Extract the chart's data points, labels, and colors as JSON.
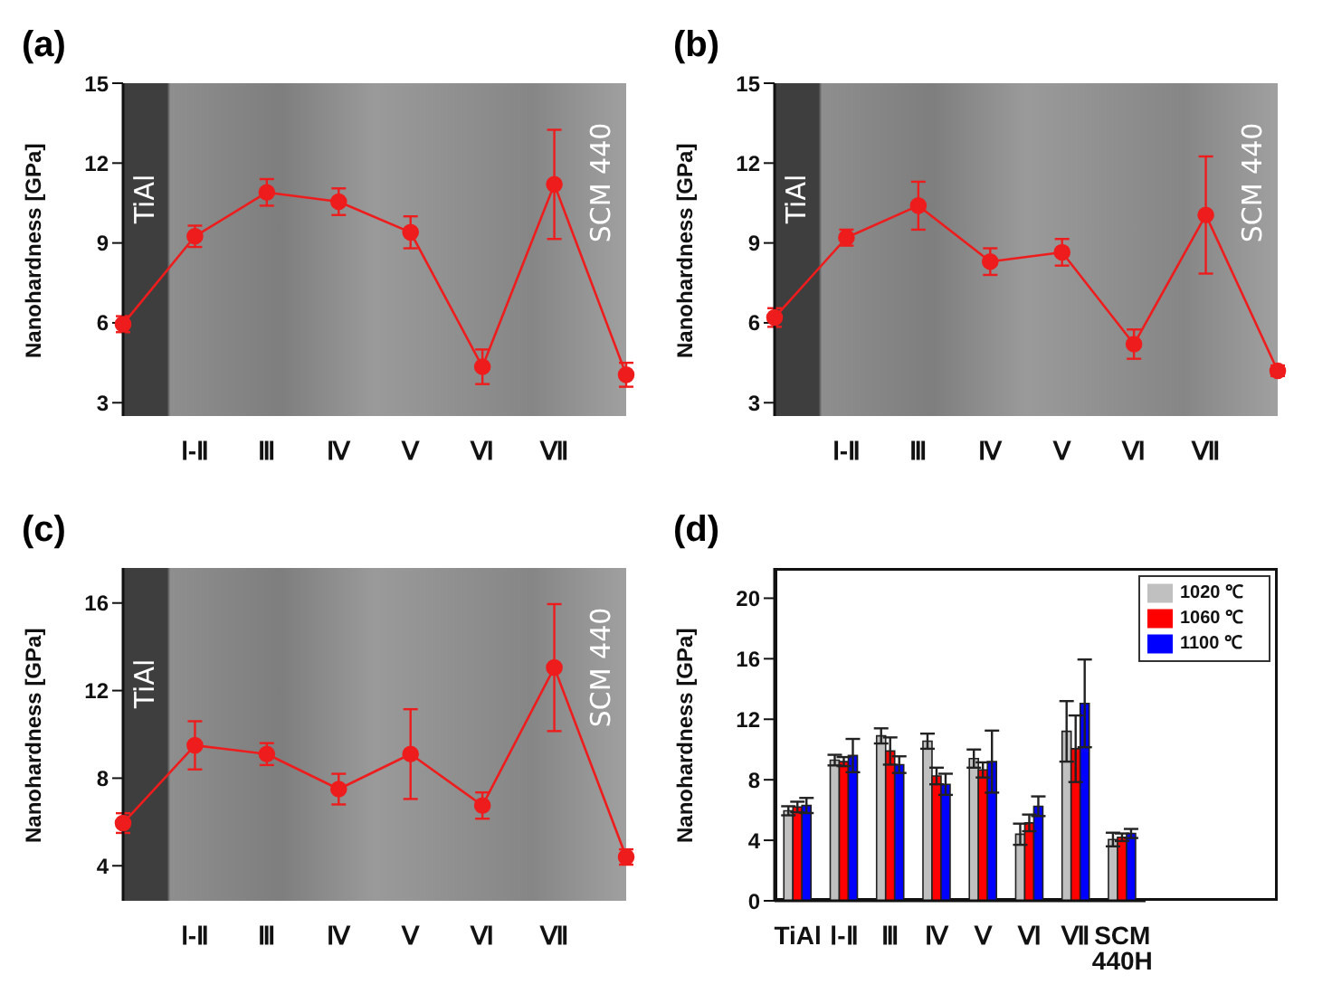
{
  "chart_data": [
    {
      "type": "line",
      "title": "(a)",
      "ylabel": "Nanohardness [GPa]",
      "categories": [
        null,
        "Ⅰ-Ⅱ",
        "Ⅲ",
        "Ⅳ",
        "Ⅴ",
        "Ⅵ",
        "Ⅶ",
        null
      ],
      "series": [
        {
          "color": "#ee1c1c",
          "values": [
            5.95,
            9.25,
            10.9,
            10.55,
            9.4,
            4.35,
            11.2,
            4.05
          ],
          "errors": [
            0.3,
            0.4,
            0.5,
            0.5,
            0.6,
            0.65,
            2.05,
            0.45
          ]
        }
      ],
      "ylim": [
        2.5,
        15
      ],
      "yticks": [
        3,
        6,
        9,
        12,
        15
      ],
      "marker": "circle",
      "annotations": [
        "TiAl",
        "SCM 440"
      ]
    },
    {
      "type": "line",
      "title": "(b)",
      "ylabel": "Nanohardness [GPa]",
      "categories": [
        null,
        "Ⅰ-Ⅱ",
        "Ⅲ",
        "Ⅳ",
        "Ⅴ",
        "Ⅵ",
        "Ⅶ",
        null
      ],
      "series": [
        {
          "color": "#ee1c1c",
          "values": [
            6.2,
            9.2,
            10.4,
            8.3,
            8.65,
            5.2,
            10.05,
            4.2
          ],
          "errors": [
            0.35,
            0.3,
            0.9,
            0.5,
            0.5,
            0.55,
            2.2,
            0.2
          ]
        }
      ],
      "ylim": [
        2.5,
        15
      ],
      "yticks": [
        3,
        6,
        9,
        12,
        15
      ],
      "marker": "circle",
      "annotations": [
        "TiAl",
        "SCM 440"
      ]
    },
    {
      "type": "line",
      "title": "(c)",
      "ylabel": "Nanohardness [GPa]",
      "categories": [
        null,
        "Ⅰ-Ⅱ",
        "Ⅲ",
        "Ⅳ",
        "Ⅴ",
        "Ⅵ",
        "Ⅶ",
        null
      ],
      "series": [
        {
          "color": "#ee1c1c",
          "values": [
            5.95,
            9.5,
            9.1,
            7.5,
            9.1,
            6.75,
            13.05,
            4.4
          ],
          "errors": [
            0.45,
            1.1,
            0.5,
            0.7,
            2.05,
            0.6,
            2.9,
            0.35
          ]
        }
      ],
      "ylim": [
        2.4,
        17.6
      ],
      "yticks": [
        4,
        8,
        12,
        16
      ],
      "marker": "circle",
      "annotations": [
        "TiAl",
        "SCM 440"
      ]
    },
    {
      "type": "bar",
      "title": "(d)",
      "ylabel": "Nanohardness [GPa]",
      "categories": [
        "TiAl",
        "Ⅰ-Ⅱ",
        "Ⅲ",
        "Ⅳ",
        "Ⅴ",
        "Ⅵ",
        "Ⅶ",
        "SCM 440H"
      ],
      "series": [
        {
          "name": "1020 ℃",
          "color": "#c0c0c0",
          "values": [
            5.95,
            9.3,
            10.9,
            10.55,
            9.4,
            4.4,
            11.2,
            4.05
          ],
          "errors": [
            0.3,
            0.35,
            0.5,
            0.5,
            0.6,
            0.7,
            2.0,
            0.45
          ]
        },
        {
          "name": "1060 ℃",
          "color": "#ff0000",
          "values": [
            6.2,
            9.2,
            9.9,
            8.25,
            8.65,
            5.15,
            10.05,
            4.2
          ],
          "errors": [
            0.35,
            0.3,
            0.9,
            0.55,
            0.5,
            0.55,
            2.2,
            0.25
          ]
        },
        {
          "name": "1100 ℃",
          "color": "#0000ff",
          "values": [
            6.3,
            9.6,
            9.0,
            7.7,
            9.2,
            6.25,
            13.05,
            4.45
          ],
          "errors": [
            0.5,
            1.1,
            0.55,
            0.7,
            2.05,
            0.65,
            2.9,
            0.3
          ]
        }
      ],
      "ylim": [
        0,
        22
      ],
      "yticks": [
        0,
        4,
        8,
        12,
        16,
        20
      ],
      "legend": "top right"
    }
  ]
}
